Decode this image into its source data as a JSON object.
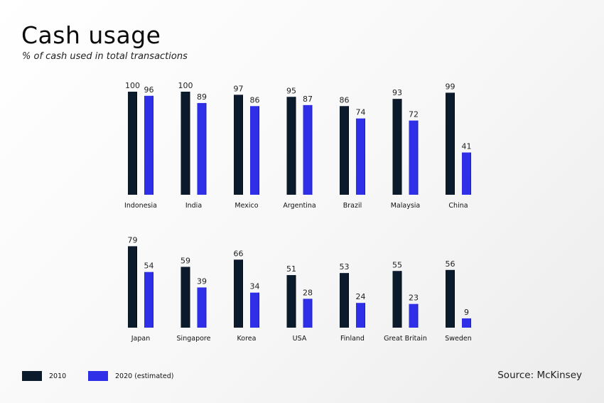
{
  "header": {
    "title": "Cash usage",
    "subtitle": "% of cash used in total transactions"
  },
  "source": "Source: McKinsey",
  "colors": {
    "s2010": "#0b1b2b",
    "s2020": "#2f2fe8",
    "shade": "#1e1ea8"
  },
  "legend": [
    {
      "label": "2010"
    },
    {
      "label": "2020 (estimated)"
    }
  ],
  "chart_data": [
    {
      "type": "bar",
      "categories": [
        "Indonesia",
        "India",
        "Mexico",
        "Argentina",
        "Brazil",
        "Malaysia",
        "China"
      ],
      "series": [
        {
          "name": "2010",
          "values": [
            100,
            100,
            97,
            95,
            86,
            93,
            99
          ]
        },
        {
          "name": "2020 (estimated)",
          "values": [
            96,
            89,
            86,
            87,
            74,
            72,
            41
          ]
        }
      ],
      "ylim": [
        0,
        100
      ]
    },
    {
      "type": "bar",
      "categories": [
        "Japan",
        "Singapore",
        "Korea",
        "USA",
        "Finland",
        "Great Britain",
        "Sweden"
      ],
      "series": [
        {
          "name": "2010",
          "values": [
            79,
            59,
            66,
            51,
            53,
            55,
            56
          ]
        },
        {
          "name": "2020 (estimated)",
          "values": [
            54,
            39,
            34,
            28,
            24,
            23,
            9
          ]
        }
      ],
      "ylim": [
        0,
        100
      ]
    }
  ]
}
